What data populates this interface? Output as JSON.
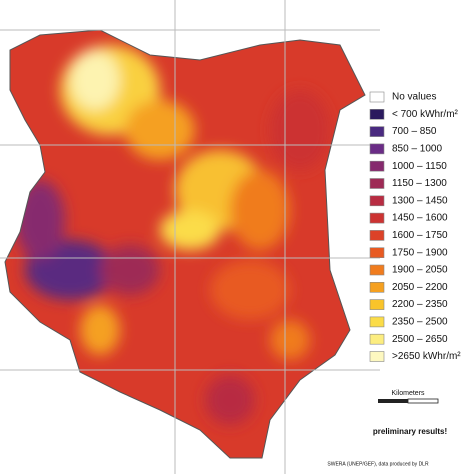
{
  "legend": {
    "items": [
      {
        "label": "No values",
        "color": "#ffffff"
      },
      {
        "label": "< 700 kWhr/m²",
        "color": "#2b1a5e"
      },
      {
        "label": "700 – 850",
        "color": "#4a2a80"
      },
      {
        "label": "850 – 1000",
        "color": "#6a2c86"
      },
      {
        "label": "1000 – 1150",
        "color": "#862a6e"
      },
      {
        "label": "1150 – 1300",
        "color": "#9e2a55"
      },
      {
        "label": "1300 – 1450",
        "color": "#b82c42"
      },
      {
        "label": "1450 – 1600",
        "color": "#cc3332"
      },
      {
        "label": "1600 – 1750",
        "color": "#dc4228"
      },
      {
        "label": "1750 – 1900",
        "color": "#e85a22"
      },
      {
        "label": "1900 – 2050",
        "color": "#f07c1e"
      },
      {
        "label": "2050 – 2200",
        "color": "#f5a020"
      },
      {
        "label": "2200 – 2350",
        "color": "#f9c42a"
      },
      {
        "label": "2350 – 2500",
        "color": "#fbdc48"
      },
      {
        "label": "2500 – 2650",
        "color": "#fced80"
      },
      {
        "label": ">2650 kWhr/m²",
        "color": "#fdf8c0"
      }
    ]
  },
  "scale": {
    "title": "Kilometers"
  },
  "notes": {
    "status": "preliminary results!",
    "credit": "SWERA (UNEP/GEF), data produced by DLR"
  }
}
